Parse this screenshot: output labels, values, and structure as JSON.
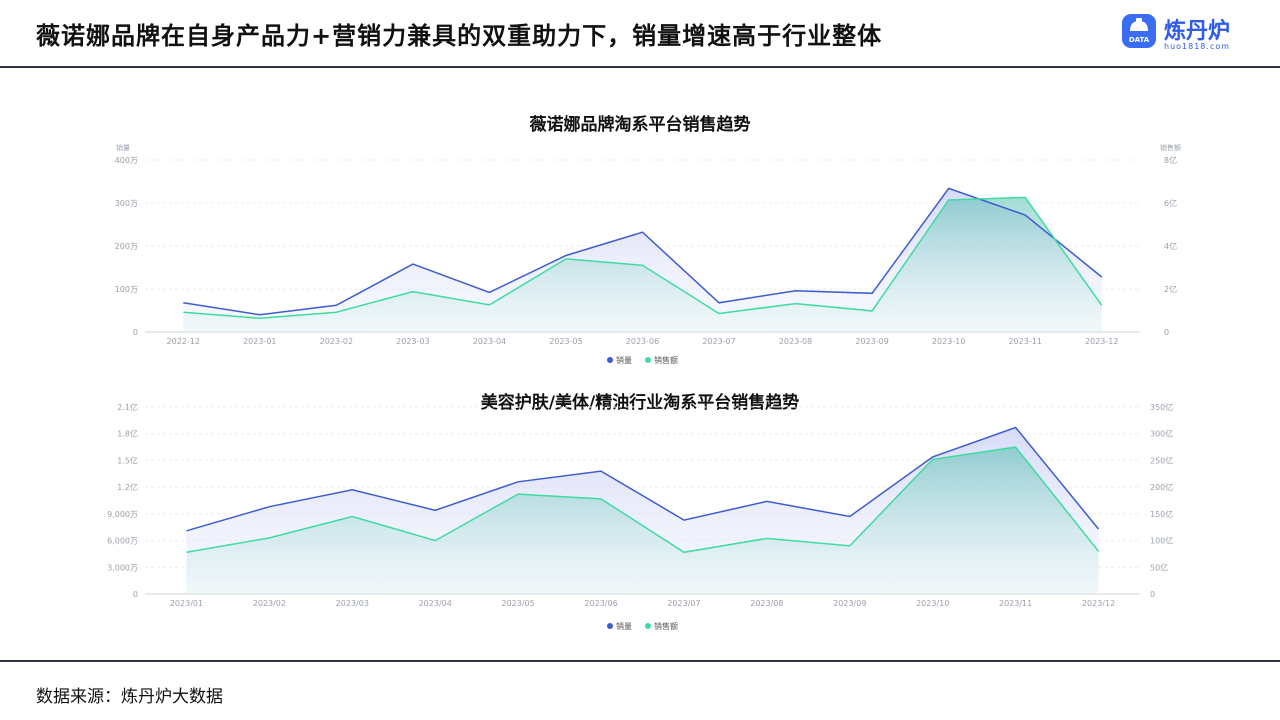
{
  "header": {
    "title": "薇诺娜品牌在自身产品力+营销力兼具的双重助力下，销量增速高于行业整体"
  },
  "logo": {
    "name": "炼丹炉",
    "url": "huo1818.com",
    "badge": "DATA",
    "icon": "data-badge-icon",
    "color": "#3b6cf5"
  },
  "footer": {
    "source": "数据来源：炼丹炉大数据"
  },
  "colors": {
    "sales_volume": "#3d5ccf",
    "sales_amount": "#3ddc9e"
  },
  "chart_data": [
    {
      "type": "line",
      "title": "薇诺娜品牌淘系平台销售趋势",
      "y_left_label": "销量",
      "y_right_label": "销售额",
      "y_left_ticks": [
        "400万",
        "300万",
        "200万",
        "100万",
        "0"
      ],
      "y_right_ticks": [
        "8亿",
        "6亿",
        "4亿",
        "2亿",
        "0"
      ],
      "y_left_range": [
        0,
        400
      ],
      "y_right_range": [
        0,
        8
      ],
      "x": [
        "2022-12",
        "2023-01",
        "2023-02",
        "2023-03",
        "2023-04",
        "2023-05",
        "2023-06",
        "2023-07",
        "2023-08",
        "2023-09",
        "2023-10",
        "2023-11",
        "2023-12"
      ],
      "series": [
        {
          "name": "销量",
          "axis": "left",
          "unit": "万",
          "values": [
            68,
            40,
            62,
            158,
            92,
            178,
            232,
            68,
            96,
            90,
            334,
            272,
            128
          ]
        },
        {
          "name": "销售额",
          "axis": "right",
          "unit": "亿",
          "values": [
            0.92,
            0.64,
            0.92,
            1.88,
            1.26,
            3.4,
            3.1,
            0.86,
            1.32,
            0.98,
            6.14,
            6.26,
            1.24
          ]
        }
      ],
      "legend": [
        "销量",
        "销售额"
      ],
      "legend_position": "bottom",
      "grid": true
    },
    {
      "type": "line",
      "title": "美容护肤/美体/精油行业淘系平台销售趋势",
      "y_left_ticks": [
        "2.1亿",
        "1.8亿",
        "1.5亿",
        "1.2亿",
        "9,000万",
        "6,000万",
        "3,000万",
        "0"
      ],
      "y_right_ticks": [
        "350亿",
        "300亿",
        "250亿",
        "200亿",
        "150亿",
        "100亿",
        "50亿",
        "0"
      ],
      "y_left_range": [
        0,
        21000
      ],
      "y_right_range": [
        0,
        350
      ],
      "x": [
        "2023/01",
        "2023/02",
        "2023/03",
        "2023/04",
        "2023/05",
        "2023/06",
        "2023/07",
        "2023/08",
        "2023/09",
        "2023/10",
        "2023/11",
        "2023/12"
      ],
      "series": [
        {
          "name": "销量",
          "axis": "left",
          "unit": "万",
          "values": [
            7100,
            9800,
            11700,
            9400,
            12600,
            13800,
            8300,
            10400,
            8700,
            15400,
            18700,
            7300
          ]
        },
        {
          "name": "销售额",
          "axis": "right",
          "unit": "亿",
          "values": [
            78,
            105,
            145,
            100,
            187,
            178,
            78,
            104,
            90,
            252,
            275,
            80
          ]
        }
      ],
      "legend": [
        "销量",
        "销售额"
      ],
      "legend_position": "bottom",
      "grid": true
    }
  ]
}
